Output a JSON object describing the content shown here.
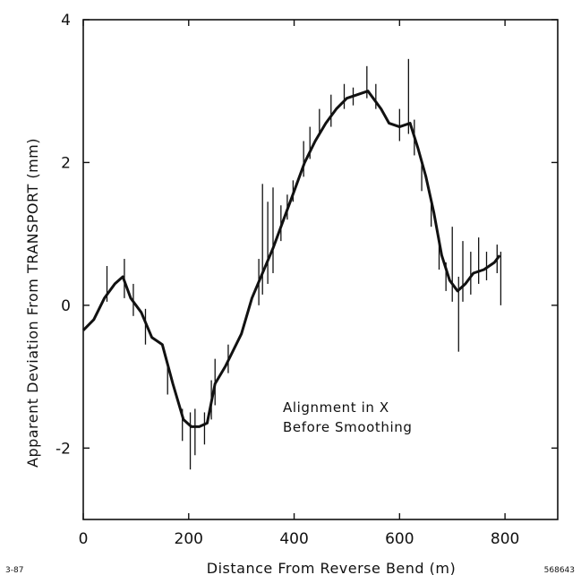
{
  "chart_data": {
    "type": "line",
    "xlabel": "Distance From Reverse Bend (m)",
    "ylabel": "Apparent Deviation From TRANSPORT (mm)",
    "xlim": [
      0,
      900
    ],
    "ylim": [
      -3,
      4
    ],
    "x_ticks": [
      0,
      200,
      400,
      600,
      800
    ],
    "y_ticks": [
      -2,
      0,
      2,
      4
    ],
    "x_tick_labels": [
      "0",
      "200",
      "400",
      "600",
      "800"
    ],
    "y_tick_labels": [
      "-2",
      "0",
      "2",
      "4"
    ],
    "grid": false,
    "annotation": [
      "Alignment in X",
      "Before Smoothing"
    ],
    "series": [
      {
        "points": [
          [
            0,
            -0.35
          ],
          [
            20,
            -0.2
          ],
          [
            40,
            0.1
          ],
          [
            60,
            0.3
          ],
          [
            75,
            0.4
          ],
          [
            90,
            0.1
          ],
          [
            110,
            -0.1
          ],
          [
            130,
            -0.45
          ],
          [
            150,
            -0.55
          ],
          [
            170,
            -1.1
          ],
          [
            190,
            -1.6
          ],
          [
            205,
            -1.7
          ],
          [
            220,
            -1.7
          ],
          [
            235,
            -1.65
          ],
          [
            250,
            -1.1
          ],
          [
            270,
            -0.85
          ],
          [
            300,
            -0.4
          ],
          [
            320,
            0.1
          ],
          [
            340,
            0.45
          ],
          [
            360,
            0.8
          ],
          [
            380,
            1.2
          ],
          [
            400,
            1.6
          ],
          [
            420,
            2.0
          ],
          [
            440,
            2.3
          ],
          [
            460,
            2.55
          ],
          [
            480,
            2.75
          ],
          [
            500,
            2.9
          ],
          [
            520,
            2.95
          ],
          [
            540,
            3.0
          ],
          [
            550,
            2.9
          ],
          [
            565,
            2.75
          ],
          [
            580,
            2.55
          ],
          [
            600,
            2.5
          ],
          [
            620,
            2.55
          ],
          [
            635,
            2.2
          ],
          [
            650,
            1.8
          ],
          [
            665,
            1.3
          ],
          [
            680,
            0.7
          ],
          [
            695,
            0.35
          ],
          [
            710,
            0.2
          ],
          [
            725,
            0.3
          ],
          [
            740,
            0.45
          ],
          [
            760,
            0.5
          ],
          [
            780,
            0.6
          ],
          [
            790,
            0.7
          ]
        ],
        "spikes": [
          [
            45,
            0.05,
            0.55
          ],
          [
            78,
            0.1,
            0.65
          ],
          [
            95,
            -0.15,
            0.3
          ],
          [
            118,
            -0.55,
            -0.05
          ],
          [
            160,
            -1.25,
            -0.8
          ],
          [
            188,
            -1.9,
            -1.45
          ],
          [
            203,
            -2.3,
            -1.5
          ],
          [
            212,
            -2.1,
            -1.45
          ],
          [
            230,
            -1.95,
            -1.5
          ],
          [
            243,
            -1.6,
            -1.05
          ],
          [
            250,
            -1.4,
            -0.75
          ],
          [
            275,
            -0.95,
            -0.55
          ],
          [
            333,
            0.0,
            0.65
          ],
          [
            340,
            0.15,
            1.7
          ],
          [
            350,
            0.3,
            1.45
          ],
          [
            360,
            0.45,
            1.65
          ],
          [
            375,
            0.9,
            1.4
          ],
          [
            387,
            1.2,
            1.55
          ],
          [
            398,
            1.45,
            1.75
          ],
          [
            418,
            1.8,
            2.3
          ],
          [
            430,
            2.05,
            2.5
          ],
          [
            448,
            2.4,
            2.75
          ],
          [
            470,
            2.5,
            2.95
          ],
          [
            495,
            2.75,
            3.1
          ],
          [
            512,
            2.8,
            3.05
          ],
          [
            538,
            2.9,
            3.35
          ],
          [
            555,
            2.75,
            3.1
          ],
          [
            600,
            2.3,
            2.75
          ],
          [
            617,
            2.4,
            3.45
          ],
          [
            628,
            2.1,
            2.6
          ],
          [
            642,
            1.6,
            2.0
          ],
          [
            660,
            1.1,
            1.5
          ],
          [
            675,
            0.5,
            0.95
          ],
          [
            688,
            0.2,
            0.6
          ],
          [
            700,
            0.05,
            1.1
          ],
          [
            712,
            -0.65,
            0.4
          ],
          [
            720,
            0.05,
            0.9
          ],
          [
            735,
            0.15,
            0.75
          ],
          [
            750,
            0.3,
            0.95
          ],
          [
            765,
            0.35,
            0.75
          ],
          [
            785,
            0.45,
            0.85
          ],
          [
            792,
            0.0,
            0.75
          ]
        ]
      }
    ]
  },
  "footer": {
    "left": "3-87",
    "right": "568643"
  }
}
